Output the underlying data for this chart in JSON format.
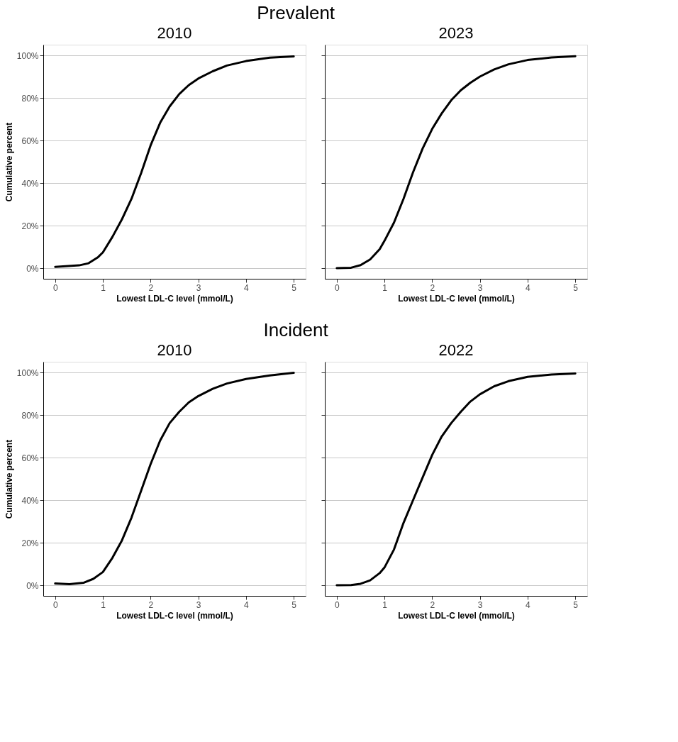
{
  "chart_data": [
    {
      "type": "line",
      "title": "2010",
      "annotations": [
        "Prevalent"
      ],
      "xlabel": "Lowest LDL-C level (mmol/L)",
      "ylabel": "Cumulative percent",
      "grid": "y",
      "line_style": "solid",
      "xlim": [
        -0.25,
        5.25
      ],
      "ylim": [
        -5,
        105
      ],
      "xticks": [
        0,
        1,
        2,
        3,
        4,
        5
      ],
      "yticks": [
        {
          "value": 0,
          "label": "0%"
        },
        {
          "value": 20,
          "label": "20%"
        },
        {
          "value": 40,
          "label": "40%"
        },
        {
          "value": 60,
          "label": "60%"
        },
        {
          "value": 80,
          "label": "80%"
        },
        {
          "value": 100,
          "label": "100%"
        }
      ],
      "x": [
        0,
        0.5,
        0.7,
        0.9,
        1.0,
        1.2,
        1.4,
        1.6,
        1.8,
        2.0,
        2.2,
        2.4,
        2.6,
        2.8,
        3.0,
        3.3,
        3.6,
        4.0,
        4.5,
        5.0
      ],
      "series": [
        {
          "color": "#000000",
          "values": [
            0.6,
            1.3,
            2.3,
            5.2,
            7.4,
            14.7,
            23,
            32.6,
            44.6,
            57.7,
            68.3,
            76,
            81.8,
            86,
            89.1,
            92.5,
            95.2,
            97.3,
            98.9,
            99.5
          ]
        }
      ]
    },
    {
      "type": "line",
      "title": "2023",
      "xlabel": "Lowest LDL-C level (mmol/L)",
      "grid": "y",
      "line_style": "solid",
      "tick_labels": "x",
      "xlim": [
        -0.25,
        5.25
      ],
      "ylim": [
        -5,
        105
      ],
      "xticks": [
        0,
        1,
        2,
        3,
        4,
        5
      ],
      "yticks": [
        {
          "value": 0,
          "label": null
        },
        {
          "value": 20,
          "label": null
        },
        {
          "value": 40,
          "label": null
        },
        {
          "value": 60,
          "label": null
        },
        {
          "value": 80,
          "label": null
        },
        {
          "value": 100,
          "label": null
        }
      ],
      "x": [
        0,
        0.3,
        0.5,
        0.7,
        0.9,
        1.0,
        1.2,
        1.4,
        1.6,
        1.8,
        2.0,
        2.2,
        2.4,
        2.6,
        2.8,
        3.0,
        3.3,
        3.6,
        4.0,
        4.5,
        5.0
      ],
      "series": [
        {
          "color": "#000000",
          "values": [
            0,
            0.2,
            1.4,
            4.1,
            8.9,
            12.8,
            21.4,
            32.6,
            45.1,
            56.2,
            65.4,
            72.7,
            78.9,
            83.6,
            87.1,
            90,
            93.4,
            95.8,
            97.8,
            99,
            99.6
          ]
        }
      ]
    },
    {
      "type": "line",
      "title": "2010",
      "annotations": [
        "Incident"
      ],
      "xlabel": "Lowest LDL-C level (mmol/L)",
      "ylabel": "Cumulative percent",
      "grid": "y",
      "line_style": "solid",
      "xlim": [
        -0.25,
        5.25
      ],
      "ylim": [
        -5,
        105
      ],
      "xticks": [
        0,
        1,
        2,
        3,
        4,
        5
      ],
      "yticks": [
        {
          "value": 0,
          "label": "0%"
        },
        {
          "value": 20,
          "label": "20%"
        },
        {
          "value": 40,
          "label": "40%"
        },
        {
          "value": 60,
          "label": "60%"
        },
        {
          "value": 80,
          "label": "80%"
        },
        {
          "value": 100,
          "label": "100%"
        }
      ],
      "x": [
        0,
        0.3,
        0.6,
        0.8,
        1.0,
        1.2,
        1.4,
        1.6,
        1.8,
        2.0,
        2.2,
        2.4,
        2.6,
        2.8,
        3.0,
        3.3,
        3.6,
        4.0,
        4.5,
        5.0
      ],
      "series": [
        {
          "color": "#000000",
          "values": [
            0.8,
            0.5,
            1.2,
            3,
            6.2,
            12.9,
            21.1,
            31.8,
            44.3,
            56.9,
            68,
            76.2,
            81.5,
            85.9,
            88.9,
            92.3,
            94.8,
            96.9,
            98.6,
            99.8
          ]
        }
      ]
    },
    {
      "type": "line",
      "title": "2022",
      "xlabel": "Lowest LDL-C level (mmol/L)",
      "grid": "y",
      "line_style": "solid",
      "tick_labels": "x",
      "xlim": [
        -0.25,
        5.25
      ],
      "ylim": [
        -5,
        105
      ],
      "xticks": [
        0,
        1,
        2,
        3,
        4,
        5
      ],
      "yticks": [
        {
          "value": 0,
          "label": null
        },
        {
          "value": 20,
          "label": null
        },
        {
          "value": 40,
          "label": null
        },
        {
          "value": 60,
          "label": null
        },
        {
          "value": 80,
          "label": null
        },
        {
          "value": 100,
          "label": null
        }
      ],
      "x": [
        0,
        0.3,
        0.5,
        0.7,
        0.9,
        1.0,
        1.2,
        1.4,
        1.6,
        1.8,
        2.0,
        2.2,
        2.4,
        2.6,
        2.8,
        3.0,
        3.3,
        3.6,
        4.0,
        4.5,
        5.0
      ],
      "series": [
        {
          "color": "#000000",
          "values": [
            0,
            0.1,
            0.7,
            2.3,
            5.7,
            8.3,
            16.8,
            29.3,
            40,
            50.6,
            61.2,
            69.9,
            76.2,
            81.5,
            86.3,
            89.7,
            93.5,
            95.9,
            97.9,
            99,
            99.5
          ]
        }
      ]
    }
  ]
}
